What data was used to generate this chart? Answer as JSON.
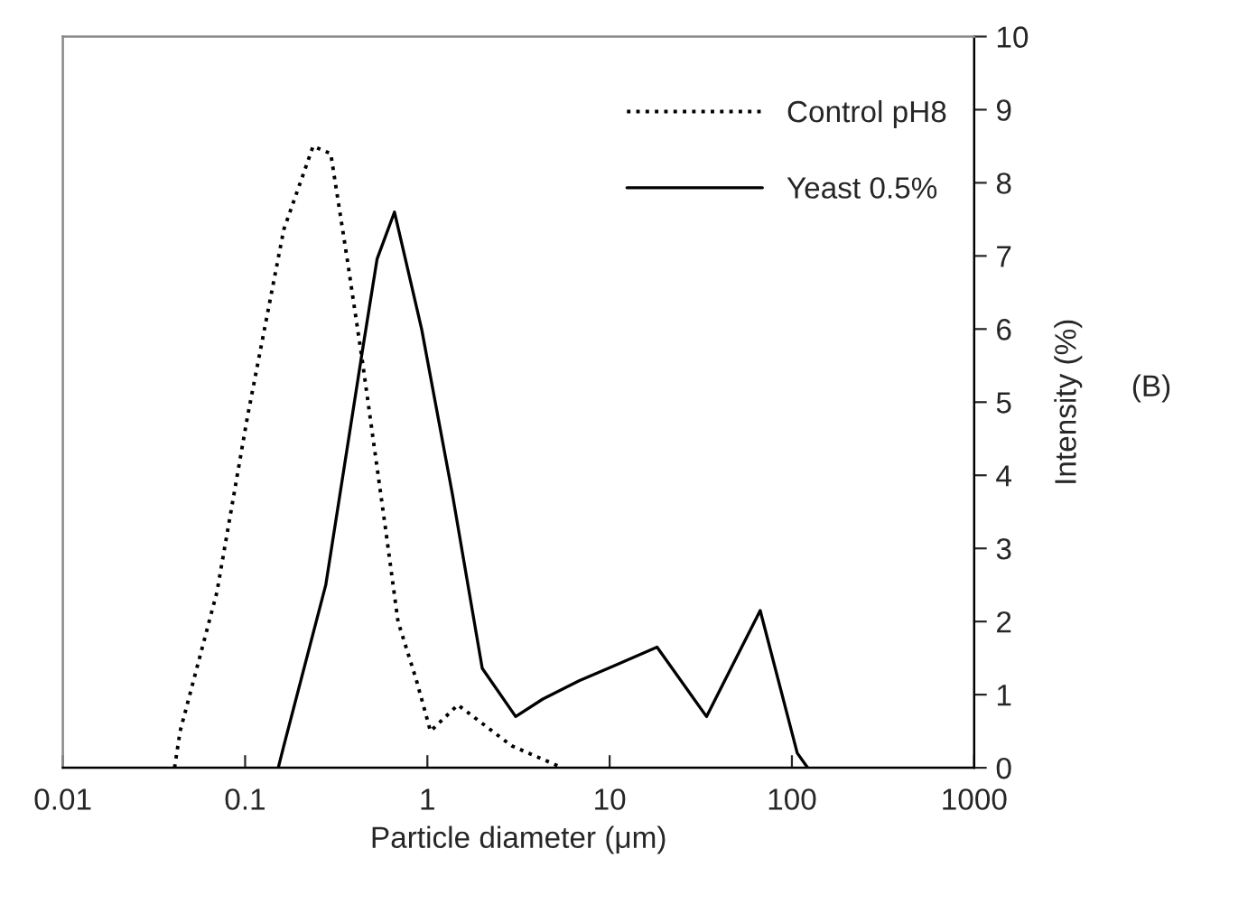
{
  "chart_data": {
    "type": "line",
    "xlabel": "Particle diameter (μm)",
    "ylabel": "Intensity (%)",
    "log": "x",
    "xlim": [
      0.01,
      1000
    ],
    "xticks": [
      0.01,
      0.1,
      1,
      10,
      100,
      1000
    ],
    "ylim": [
      0,
      10
    ],
    "yticks": [
      0,
      1,
      2,
      3,
      4,
      5,
      6,
      7,
      8,
      9,
      10
    ],
    "grid": false,
    "legend": "top right",
    "marker": "none",
    "annotations": [
      "(B)"
    ],
    "series": [
      {
        "name": "Control pH8",
        "color": "#000000",
        "line_style": "dotted",
        "x": [
          0.041,
          0.044,
          0.07,
          0.103,
          0.163,
          0.236,
          0.295,
          0.363,
          0.44,
          0.59,
          0.69,
          0.87,
          1.04,
          1.47,
          2.9,
          5.5
        ],
        "values": [
          0,
          0.5,
          2.4,
          4.8,
          7.36,
          8.5,
          8.4,
          6.96,
          5.56,
          3.26,
          2.0,
          1.2,
          0.5,
          0.86,
          0.3,
          0
        ]
      },
      {
        "name": "Yeast 0.5%",
        "color": "#000000",
        "line_style": "solid",
        "x": [
          0.152,
          0.163,
          0.277,
          0.44,
          0.53,
          0.66,
          0.93,
          1.37,
          2.0,
          3.05,
          4.3,
          6.8,
          10.7,
          18.2,
          34,
          67,
          107,
          122
        ],
        "values": [
          0,
          0.3,
          2.5,
          5.7,
          6.96,
          7.6,
          6.0,
          3.75,
          1.36,
          0.7,
          0.94,
          1.19,
          1.4,
          1.65,
          0.7,
          2.15,
          0.2,
          0
        ]
      }
    ]
  }
}
